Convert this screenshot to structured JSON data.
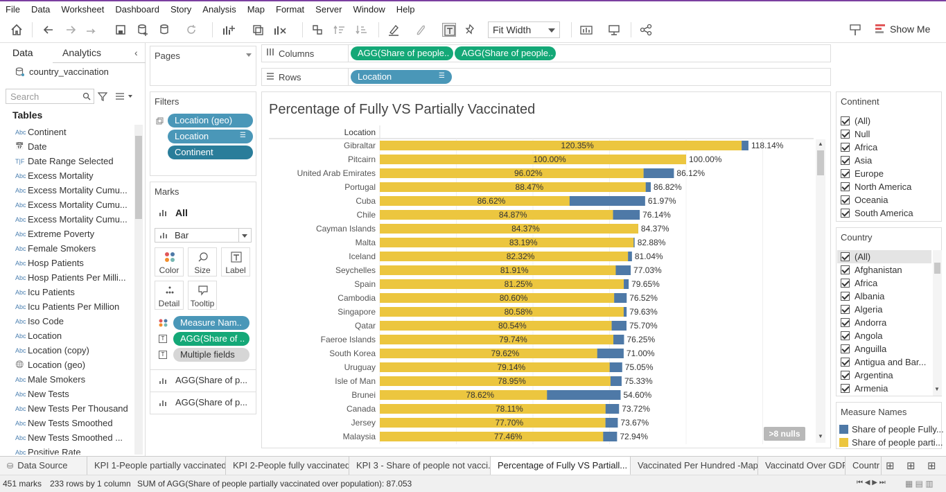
{
  "menu": [
    "File",
    "Data",
    "Worksheet",
    "Dashboard",
    "Story",
    "Analysis",
    "Map",
    "Format",
    "Server",
    "Window",
    "Help"
  ],
  "toolbar": {
    "fit_label": "Fit Width",
    "show_me_label": "Show Me"
  },
  "left_pane": {
    "tab_data": "Data",
    "tab_analytics": "Analytics",
    "datasource": "country_vaccination",
    "search_placeholder": "Search",
    "tables_heading": "Tables",
    "fields": [
      {
        "type": "Abc",
        "name": "Continent"
      },
      {
        "type": "date",
        "name": "Date"
      },
      {
        "type": "T|F",
        "name": "Date Range Selected"
      },
      {
        "type": "Abc",
        "name": "Excess Mortality"
      },
      {
        "type": "Abc",
        "name": "Excess Mortality Cumu..."
      },
      {
        "type": "Abc",
        "name": "Excess Mortality Cumu..."
      },
      {
        "type": "Abc",
        "name": "Excess Mortality Cumu..."
      },
      {
        "type": "Abc",
        "name": "Extreme Poverty"
      },
      {
        "type": "Abc",
        "name": "Female Smokers"
      },
      {
        "type": "Abc",
        "name": "Hosp Patients"
      },
      {
        "type": "Abc",
        "name": "Hosp Patients Per Milli..."
      },
      {
        "type": "Abc",
        "name": "Icu Patients"
      },
      {
        "type": "Abc",
        "name": "Icu Patients Per Million"
      },
      {
        "type": "Abc",
        "name": "Iso Code"
      },
      {
        "type": "Abc",
        "name": "Location"
      },
      {
        "type": "Abc",
        "name": "Location (copy)"
      },
      {
        "type": "geo",
        "name": "Location (geo)"
      },
      {
        "type": "Abc",
        "name": "Male Smokers"
      },
      {
        "type": "Abc",
        "name": "New Tests"
      },
      {
        "type": "Abc",
        "name": "New Tests Per Thousand"
      },
      {
        "type": "Abc",
        "name": "New Tests Smoothed"
      },
      {
        "type": "Abc",
        "name": "New Tests Smoothed ..."
      },
      {
        "type": "Abc",
        "name": "Positive Rate"
      }
    ]
  },
  "pages": {
    "title": "Pages"
  },
  "filters": {
    "title": "Filters",
    "pills": [
      "Location (geo)",
      "Location",
      "Continent"
    ]
  },
  "marks": {
    "title": "Marks",
    "all_label": "All",
    "mark_type": "Bar",
    "buttons": [
      "Color",
      "Size",
      "Label",
      "Detail",
      "Tooltip"
    ],
    "pills": [
      "Measure Nam..",
      "AGG(Share of ..",
      "Multiple fields"
    ],
    "measures": [
      "AGG(Share of p...",
      "AGG(Share of p..."
    ]
  },
  "shelves": {
    "columns_label": "Columns",
    "rows_label": "Rows",
    "column_pills": [
      "AGG(Share of people..",
      "AGG(Share of people.."
    ],
    "row_pills": [
      "Location"
    ]
  },
  "view": {
    "title": "Percentage of Fully VS Partially Vaccinated",
    "row_header": "Location",
    "nulls_badge": ">8 nulls"
  },
  "chart_data": {
    "type": "bar",
    "orientation": "horizontal",
    "categories": [
      "Gibraltar",
      "Pitcairn",
      "United Arab Emirates",
      "Portugal",
      "Cuba",
      "Chile",
      "Cayman Islands",
      "Malta",
      "Iceland",
      "Seychelles",
      "Spain",
      "Cambodia",
      "Singapore",
      "Qatar",
      "Faeroe Islands",
      "South Korea",
      "Uruguay",
      "Isle of Man",
      "Brunei",
      "Canada",
      "Jersey",
      "Malaysia"
    ],
    "series": [
      {
        "name": "Share of people partially vaccinated",
        "color": "#ecc63f",
        "values": [
          120.35,
          100.0,
          96.02,
          88.47,
          86.62,
          84.87,
          84.37,
          83.19,
          82.32,
          81.91,
          81.25,
          80.6,
          80.58,
          80.54,
          79.74,
          79.62,
          79.14,
          78.95,
          78.62,
          78.11,
          77.7,
          77.46
        ],
        "labels": [
          "120.35%",
          "100.00%",
          "96.02%",
          "88.47%",
          "86.62%",
          "84.87%",
          "84.37%",
          "83.19%",
          "82.32%",
          "81.91%",
          "81.25%",
          "80.60%",
          "80.58%",
          "80.54%",
          "79.74%",
          "79.62%",
          "79.14%",
          "78.95%",
          "78.62%",
          "78.11%",
          "77.70%",
          "77.46%"
        ]
      },
      {
        "name": "Share of people fully vaccinated",
        "color": "#4e79a7",
        "values": [
          118.14,
          100.0,
          86.12,
          86.82,
          61.97,
          76.14,
          84.37,
          82.88,
          81.04,
          77.03,
          79.65,
          76.52,
          79.63,
          75.7,
          76.25,
          71.0,
          75.05,
          75.33,
          54.6,
          73.72,
          73.67,
          72.94
        ],
        "labels": [
          "118.14%",
          "100.00%",
          "86.12%",
          "86.82%",
          "61.97%",
          "76.14%",
          "84.37%",
          "82.88%",
          "81.04%",
          "77.03%",
          "79.65%",
          "76.52%",
          "79.63%",
          "75.70%",
          "76.25%",
          "71.00%",
          "75.05%",
          "75.33%",
          "54.60%",
          "73.72%",
          "73.67%",
          "72.94%"
        ]
      }
    ],
    "xlim": [
      0,
      150
    ]
  },
  "right_panel": {
    "continent_title": "Continent",
    "continents": [
      "(All)",
      "Null",
      "Africa",
      "Asia",
      "Europe",
      "North America",
      "Oceania",
      "South America"
    ],
    "country_title": "Country",
    "countries": [
      "(All)",
      "Afghanistan",
      "Africa",
      "Albania",
      "Algeria",
      "Andorra",
      "Angola",
      "Anguilla",
      "Antigua and Bar...",
      "Argentina",
      "Armenia"
    ],
    "legend_title": "Measure Names",
    "legend": [
      {
        "label": "Share of people Fully...",
        "color": "#4e79a7"
      },
      {
        "label": "Share of people parti...",
        "color": "#ecc63f"
      }
    ]
  },
  "sheet_tabs": [
    "Data Source",
    "KPI 1-People partially vaccinated",
    "KPI 2-People fully vaccinated",
    "KPI 3 - Share of people not vacci...",
    "Percentage of Fully VS Partiall...",
    "Vaccinated Per Hundred -Map",
    "Vaccinatd Over GDP",
    "Countr"
  ],
  "status": {
    "marks": "451 marks",
    "rows": "233 rows by 1 column",
    "sum": "SUM of AGG(Share of people partially vaccinated over population): 87.053"
  }
}
